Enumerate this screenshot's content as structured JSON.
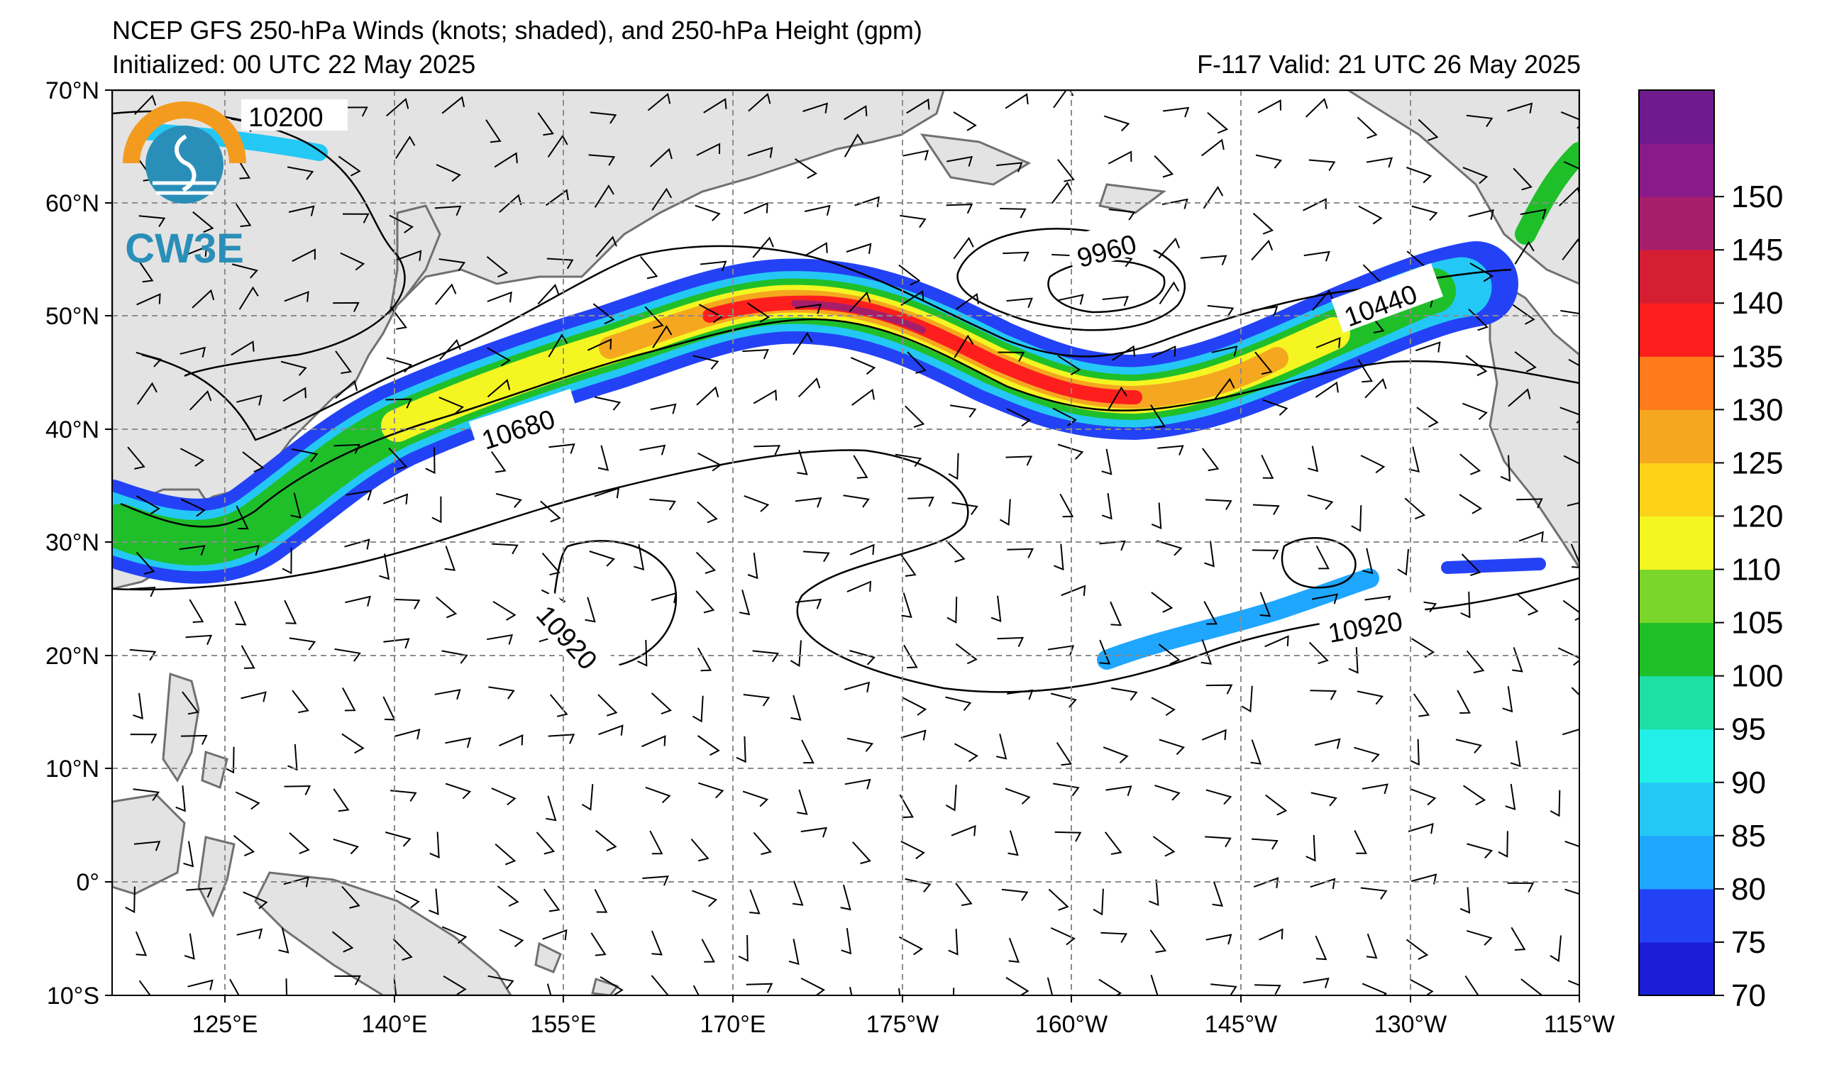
{
  "header": {
    "title": "NCEP GFS 250-hPa Winds (knots; shaded), and 250-hPa Height (gpm)",
    "initialized": "Initialized: 00 UTC 22 May 2025",
    "valid": "F-117  Valid: 21 UTC 26 May 2025"
  },
  "logo": {
    "text": "CW3E",
    "icon": "cw3e-logo-icon",
    "colors": {
      "arc": "#f39b1f",
      "water": "#2a8fb8"
    }
  },
  "axes": {
    "lat_labels": [
      "70°N",
      "60°N",
      "50°N",
      "40°N",
      "30°N",
      "20°N",
      "10°N",
      "0°",
      "10°S"
    ],
    "lon_labels": [
      "125°E",
      "140°E",
      "155°E",
      "170°E",
      "175°W",
      "160°W",
      "145°W",
      "130°W",
      "115°W"
    ],
    "lat_range": [
      -10,
      70
    ],
    "grid": true,
    "grid_style": "dashed"
  },
  "contours": {
    "labels": [
      "10200",
      "9960",
      "10440",
      "10680",
      "10920",
      "10920"
    ],
    "units": "gpm"
  },
  "colorbar": {
    "ticks": [
      "150",
      "145",
      "140",
      "135",
      "130",
      "125",
      "120",
      "110",
      "105",
      "100",
      "95",
      "90",
      "85",
      "80",
      "75",
      "70"
    ],
    "bins": [
      {
        "lo": 70,
        "color": "#1a1ed6"
      },
      {
        "lo": 75,
        "color": "#2442f5"
      },
      {
        "lo": 80,
        "color": "#1fa6ff"
      },
      {
        "lo": 85,
        "color": "#24c8f5"
      },
      {
        "lo": 90,
        "color": "#22f0e8"
      },
      {
        "lo": 95,
        "color": "#1ee0a6"
      },
      {
        "lo": 100,
        "color": "#1fbf2a"
      },
      {
        "lo": 105,
        "color": "#7ad62a"
      },
      {
        "lo": 110,
        "color": "#f5f522"
      },
      {
        "lo": 120,
        "color": "#ffd21a"
      },
      {
        "lo": 125,
        "color": "#f5a81f"
      },
      {
        "lo": 130,
        "color": "#ff7a1a"
      },
      {
        "lo": 135,
        "color": "#ff1e1e"
      },
      {
        "lo": 140,
        "color": "#d61e32"
      },
      {
        "lo": 145,
        "color": "#a61e6a"
      },
      {
        "lo": 150,
        "color": "#8a1a8a"
      },
      {
        "lo": 155,
        "color": "#701a90"
      }
    ]
  },
  "colors": {
    "land": "#e3e3e3",
    "coast": "#707070",
    "contour": "#000000",
    "grid": "#8c8c8c"
  }
}
